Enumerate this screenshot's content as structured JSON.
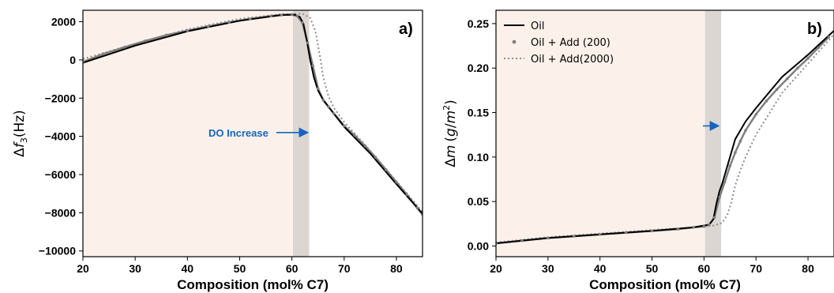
{
  "colors": {
    "oil": "#000000",
    "add200": "#7f7f7f",
    "add2000": "#8c8c8c",
    "shade_light": "#fcf1ea",
    "shade_dark": "#dcd6d3",
    "annotation": "#1565c0"
  },
  "chart_data": [
    {
      "type": "line",
      "panel_label": "a)",
      "xlabel": "Composition (mol% C7)",
      "ylabel_prefix": "Δ",
      "ylabel_var": "f",
      "ylabel_sub": "3",
      "ylabel_unit": "(Hz)",
      "xlim": [
        20,
        85
      ],
      "ylim": [
        -10300,
        2600
      ],
      "xticks": [
        "20",
        "30",
        "40",
        "50",
        "60",
        "70",
        "80"
      ],
      "yticks": [
        "2000",
        "0",
        "−2000",
        "−4000",
        "−6000",
        "−8000",
        "−10000"
      ],
      "ytick_values": [
        2000,
        0,
        -2000,
        -4000,
        -6000,
        -8000,
        -10000
      ],
      "shade_regions": [
        [
          20,
          60.2
        ],
        [
          60.2,
          63.3
        ]
      ],
      "annotation": {
        "text": "DO Increase",
        "x": 55.5,
        "y": -3800,
        "arrow_to": 63.0
      },
      "series": [
        {
          "name": "Oil",
          "x": [
            20,
            30,
            40,
            50,
            58,
            60.5,
            61.5,
            62.2,
            62.8,
            63.5,
            64.2,
            65,
            66,
            68,
            70,
            75,
            80,
            85
          ],
          "y": [
            -150,
            750,
            1500,
            2050,
            2350,
            2370,
            2250,
            1900,
            1100,
            0,
            -900,
            -1600,
            -2100,
            -2800,
            -3500,
            -4900,
            -6500,
            -8050
          ]
        },
        {
          "name": "Oil + Add (200)",
          "x": [
            20,
            24,
            28,
            32,
            36,
            40,
            44,
            48,
            52,
            56,
            58,
            60,
            61,
            62,
            63,
            64,
            65,
            66,
            67,
            68,
            70,
            72,
            74,
            76,
            78,
            80,
            82,
            84,
            85
          ],
          "y": [
            -100,
            320,
            670,
            1000,
            1300,
            1530,
            1760,
            1970,
            2150,
            2300,
            2350,
            2370,
            2300,
            1950,
            900,
            -300,
            -1500,
            -2100,
            -2450,
            -2800,
            -3450,
            -3950,
            -4500,
            -5100,
            -5750,
            -6400,
            -7050,
            -7750,
            -8100
          ]
        },
        {
          "name": "Oil + Add(2000)",
          "x": [
            20,
            30,
            40,
            50,
            58,
            62,
            63.5,
            64.5,
            65.3,
            66,
            67,
            68,
            70,
            75,
            80,
            85
          ],
          "y": [
            50,
            850,
            1600,
            2150,
            2400,
            2420,
            2200,
            1500,
            300,
            -900,
            -1900,
            -2500,
            -3250,
            -4750,
            -6350,
            -7950
          ]
        }
      ]
    },
    {
      "type": "line",
      "panel_label": "b)",
      "xlabel": "Composition (mol% C7)",
      "ylabel_prefix": "Δ",
      "ylabel_var": "m",
      "ylabel_unit_open": "(",
      "ylabel_unit_g": "g",
      "ylabel_unit_slash": "/",
      "ylabel_unit_m": "m",
      "ylabel_unit_exp": "2",
      "ylabel_unit_close": ")",
      "xlim": [
        20,
        85
      ],
      "ylim": [
        -0.012,
        0.265
      ],
      "xticks": [
        "20",
        "30",
        "40",
        "50",
        "60",
        "70",
        "80"
      ],
      "yticks": [
        "0.25",
        "0.20",
        "0.15",
        "0.10",
        "0.05",
        "0.00"
      ],
      "ytick_values": [
        0.25,
        0.2,
        0.15,
        0.1,
        0.05,
        0.0
      ],
      "shade_regions": [
        [
          20,
          60.2
        ],
        [
          60.2,
          63.3
        ]
      ],
      "annotation": {
        "text": "",
        "x": 59.8,
        "y": 0.135,
        "arrow_to": 62.8
      },
      "legend": [
        "Oil",
        "Oil + Add (200)",
        "Oil + Add(2000)"
      ],
      "series": [
        {
          "name": "Oil",
          "x": [
            20,
            30,
            40,
            50,
            58,
            61,
            61.8,
            62.4,
            63,
            63.5,
            64,
            65,
            66,
            68,
            70,
            75,
            80,
            85
          ],
          "y": [
            0.003,
            0.009,
            0.013,
            0.017,
            0.021,
            0.024,
            0.03,
            0.048,
            0.062,
            0.07,
            0.08,
            0.1,
            0.12,
            0.14,
            0.155,
            0.19,
            0.215,
            0.242
          ]
        },
        {
          "name": "Oil + Add (200)",
          "x": [
            20,
            25,
            30,
            35,
            40,
            45,
            50,
            55,
            58,
            60,
            61,
            62,
            63,
            64,
            65,
            66,
            67,
            68,
            70,
            72,
            74,
            76,
            78,
            80,
            82,
            84
          ],
          "y": [
            0.003,
            0.006,
            0.009,
            0.011,
            0.013,
            0.015,
            0.017,
            0.019,
            0.021,
            0.022,
            0.024,
            0.032,
            0.055,
            0.072,
            0.09,
            0.105,
            0.118,
            0.13,
            0.148,
            0.163,
            0.176,
            0.188,
            0.2,
            0.211,
            0.223,
            0.235
          ]
        },
        {
          "name": "Oil + Add(2000)",
          "x": [
            20,
            30,
            40,
            50,
            58,
            62,
            63.5,
            64.5,
            65.3,
            66,
            67,
            68,
            70,
            75,
            80,
            85
          ],
          "y": [
            0.004,
            0.01,
            0.014,
            0.018,
            0.021,
            0.023,
            0.026,
            0.035,
            0.05,
            0.068,
            0.085,
            0.1,
            0.125,
            0.172,
            0.205,
            0.238
          ]
        }
      ]
    }
  ]
}
